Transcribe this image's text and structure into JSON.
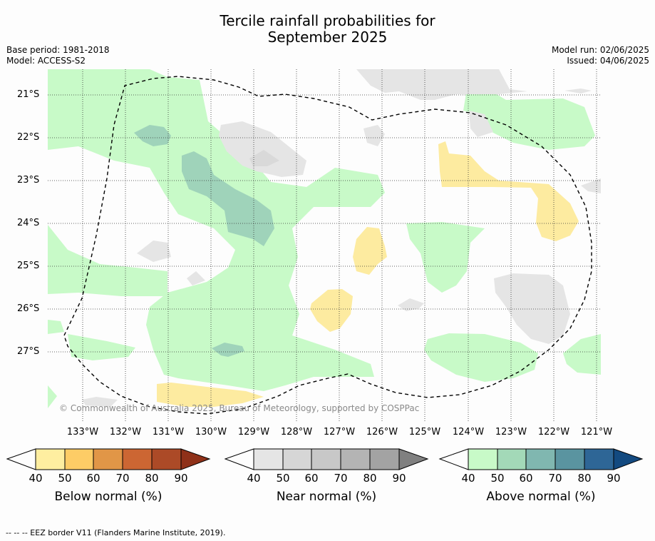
{
  "title_line1": "Tercile rainfall probabilities for",
  "title_line2": "September 2025",
  "meta": {
    "base_period": "Base period: 1981-2018",
    "model": "Model: ACCESS-S2",
    "model_run": "Model run: 02/06/2025",
    "issued": "Issued: 04/06/2025"
  },
  "map": {
    "lat_labels": [
      "21°S",
      "22°S",
      "23°S",
      "24°S",
      "25°S",
      "26°S",
      "27°S"
    ],
    "lon_labels": [
      "133°W",
      "132°W",
      "131°W",
      "130°W",
      "129°W",
      "128°W",
      "127°W",
      "126°W",
      "125°W",
      "124°W",
      "123°W",
      "122°W",
      "121°W"
    ],
    "copyright": "© Commonwealth of Australia 2025, Bureau of Meteorology, supported by COSPPac",
    "colors": {
      "above_40": "#c8fac8",
      "above_50": "#9fd3ba",
      "near_40": "#e5e5e5",
      "near_50": "#d9d9d9",
      "below_40": "#fdeba0",
      "eez_line": "#000000"
    }
  },
  "colorbars": [
    {
      "label": "Below normal (%)",
      "ticks": [
        "40",
        "50",
        "60",
        "70",
        "80",
        "90"
      ],
      "colors": [
        "#fdfdfd",
        "#feeea0",
        "#fdcc66",
        "#e19647",
        "#cc6633",
        "#ac4a27",
        "#8f3119"
      ]
    },
    {
      "label": "Near normal (%)",
      "ticks": [
        "40",
        "50",
        "60",
        "70",
        "80",
        "90"
      ],
      "colors": [
        "#fdfdfd",
        "#e5e5e5",
        "#d6d6d6",
        "#c8c8c8",
        "#b4b4b4",
        "#a3a3a3",
        "#808080"
      ]
    },
    {
      "label": "Above normal (%)",
      "ticks": [
        "40",
        "50",
        "60",
        "70",
        "80",
        "90"
      ],
      "colors": [
        "#fdfdfd",
        "#c8fac8",
        "#a3d9b8",
        "#80b7b0",
        "#5a94a0",
        "#2e6696",
        "#134a80"
      ]
    }
  ],
  "footnote": "--  --  -- EEZ border V11 (Flanders Marine Institute, 2019)."
}
